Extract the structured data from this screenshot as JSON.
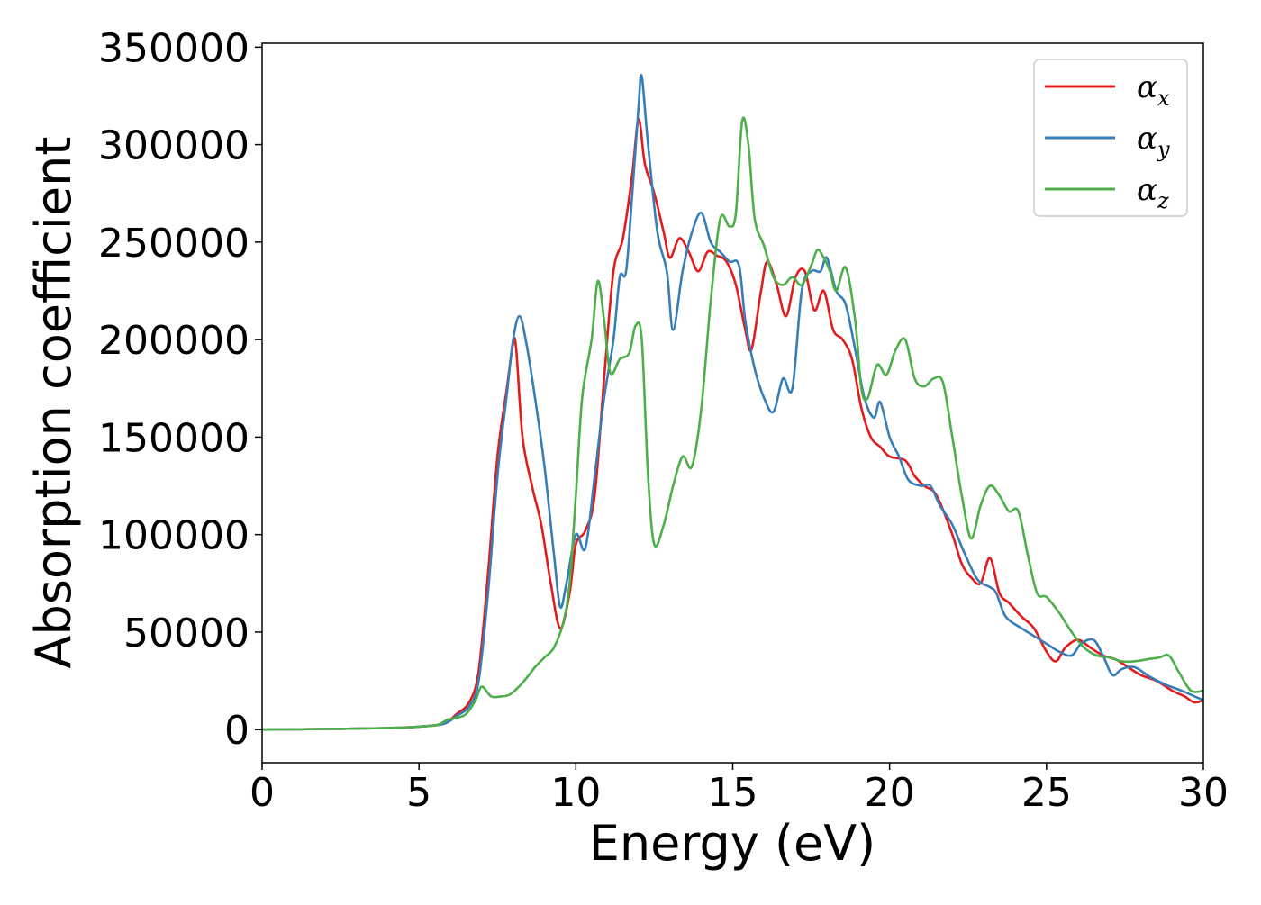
{
  "chart_data": {
    "type": "line",
    "title": "",
    "xlabel": "Energy (eV)",
    "ylabel": "Absorption coefficient",
    "xlim": [
      0,
      30
    ],
    "ylim": [
      -17000,
      352000
    ],
    "xticks": [
      0,
      5,
      10,
      15,
      20,
      25,
      30
    ],
    "xtick_labels": [
      "0",
      "5",
      "10",
      "15",
      "20",
      "25",
      "30"
    ],
    "yticks": [
      0,
      50000,
      100000,
      150000,
      200000,
      250000,
      300000,
      350000
    ],
    "ytick_labels": [
      "0",
      "50000",
      "100000",
      "150000",
      "200000",
      "250000",
      "300000",
      "350000"
    ],
    "grid": false,
    "legend_position": "top-right",
    "series": [
      {
        "name": "αx",
        "legend_base": "α",
        "legend_sub": "x",
        "color": "#e41a1c",
        "points": [
          [
            0,
            0
          ],
          [
            2,
            300
          ],
          [
            4,
            800
          ],
          [
            5,
            1500
          ],
          [
            5.8,
            3000
          ],
          [
            6.2,
            8000
          ],
          [
            6.6,
            14000
          ],
          [
            6.9,
            30000
          ],
          [
            7.2,
            80000
          ],
          [
            7.5,
            140000
          ],
          [
            7.8,
            175000
          ],
          [
            8.0,
            198000
          ],
          [
            8.1,
            195000
          ],
          [
            8.3,
            150000
          ],
          [
            8.6,
            125000
          ],
          [
            8.9,
            105000
          ],
          [
            9.2,
            75000
          ],
          [
            9.5,
            52000
          ],
          [
            9.8,
            70000
          ],
          [
            10.0,
            95000
          ],
          [
            10.3,
            102000
          ],
          [
            10.6,
            120000
          ],
          [
            10.9,
            180000
          ],
          [
            11.2,
            235000
          ],
          [
            11.5,
            252000
          ],
          [
            11.8,
            285000
          ],
          [
            12.0,
            313000
          ],
          [
            12.2,
            290000
          ],
          [
            12.5,
            275000
          ],
          [
            12.8,
            255000
          ],
          [
            13.0,
            242000
          ],
          [
            13.3,
            252000
          ],
          [
            13.6,
            245000
          ],
          [
            13.9,
            235000
          ],
          [
            14.2,
            245000
          ],
          [
            14.5,
            243000
          ],
          [
            14.8,
            240000
          ],
          [
            15.1,
            228000
          ],
          [
            15.4,
            205000
          ],
          [
            15.6,
            195000
          ],
          [
            15.9,
            225000
          ],
          [
            16.1,
            240000
          ],
          [
            16.4,
            228000
          ],
          [
            16.7,
            212000
          ],
          [
            17.0,
            232000
          ],
          [
            17.3,
            235000
          ],
          [
            17.6,
            215000
          ],
          [
            17.9,
            225000
          ],
          [
            18.2,
            205000
          ],
          [
            18.5,
            200000
          ],
          [
            18.8,
            190000
          ],
          [
            19.1,
            165000
          ],
          [
            19.4,
            150000
          ],
          [
            19.7,
            145000
          ],
          [
            20.0,
            140000
          ],
          [
            20.5,
            138000
          ],
          [
            20.8,
            130000
          ],
          [
            21.1,
            125000
          ],
          [
            21.5,
            120000
          ],
          [
            22.0,
            100000
          ],
          [
            22.3,
            85000
          ],
          [
            22.6,
            78000
          ],
          [
            22.9,
            75000
          ],
          [
            23.2,
            88000
          ],
          [
            23.5,
            70000
          ],
          [
            23.8,
            65000
          ],
          [
            24.2,
            58000
          ],
          [
            24.6,
            52000
          ],
          [
            25.0,
            40000
          ],
          [
            25.3,
            35000
          ],
          [
            25.6,
            42000
          ],
          [
            26.0,
            46000
          ],
          [
            26.4,
            42000
          ],
          [
            26.8,
            38000
          ],
          [
            27.2,
            36000
          ],
          [
            27.6,
            32000
          ],
          [
            28.0,
            28000
          ],
          [
            28.5,
            25000
          ],
          [
            29.0,
            20000
          ],
          [
            29.4,
            17000
          ],
          [
            29.7,
            14000
          ],
          [
            30.0,
            15000
          ]
        ]
      },
      {
        "name": "αy",
        "legend_base": "α",
        "legend_sub": "y",
        "color": "#377eb8",
        "points": [
          [
            0,
            0
          ],
          [
            2,
            300
          ],
          [
            4,
            800
          ],
          [
            5,
            1500
          ],
          [
            5.8,
            3000
          ],
          [
            6.2,
            7000
          ],
          [
            6.6,
            12000
          ],
          [
            6.9,
            25000
          ],
          [
            7.2,
            70000
          ],
          [
            7.5,
            130000
          ],
          [
            7.8,
            172000
          ],
          [
            8.0,
            200000
          ],
          [
            8.2,
            212000
          ],
          [
            8.4,
            200000
          ],
          [
            8.7,
            170000
          ],
          [
            9.0,
            135000
          ],
          [
            9.3,
            90000
          ],
          [
            9.5,
            63000
          ],
          [
            9.7,
            75000
          ],
          [
            10.0,
            100000
          ],
          [
            10.3,
            93000
          ],
          [
            10.6,
            130000
          ],
          [
            10.9,
            170000
          ],
          [
            11.2,
            200000
          ],
          [
            11.4,
            232000
          ],
          [
            11.6,
            235000
          ],
          [
            11.8,
            275000
          ],
          [
            12.0,
            320000
          ],
          [
            12.1,
            335000
          ],
          [
            12.3,
            300000
          ],
          [
            12.6,
            255000
          ],
          [
            12.9,
            235000
          ],
          [
            13.1,
            205000
          ],
          [
            13.4,
            235000
          ],
          [
            13.7,
            255000
          ],
          [
            14.0,
            265000
          ],
          [
            14.3,
            250000
          ],
          [
            14.6,
            245000
          ],
          [
            14.9,
            240000
          ],
          [
            15.2,
            238000
          ],
          [
            15.4,
            210000
          ],
          [
            15.7,
            185000
          ],
          [
            16.0,
            170000
          ],
          [
            16.3,
            163000
          ],
          [
            16.6,
            180000
          ],
          [
            16.9,
            175000
          ],
          [
            17.2,
            225000
          ],
          [
            17.5,
            235000
          ],
          [
            17.8,
            235000
          ],
          [
            18.0,
            242000
          ],
          [
            18.3,
            225000
          ],
          [
            18.6,
            218000
          ],
          [
            18.9,
            195000
          ],
          [
            19.2,
            170000
          ],
          [
            19.5,
            160000
          ],
          [
            19.7,
            168000
          ],
          [
            20.0,
            150000
          ],
          [
            20.3,
            140000
          ],
          [
            20.6,
            128000
          ],
          [
            21.0,
            125000
          ],
          [
            21.3,
            125000
          ],
          [
            21.6,
            115000
          ],
          [
            22.0,
            105000
          ],
          [
            22.4,
            90000
          ],
          [
            22.8,
            77000
          ],
          [
            23.2,
            73000
          ],
          [
            23.4,
            70000
          ],
          [
            23.7,
            58000
          ],
          [
            24.2,
            52000
          ],
          [
            24.6,
            48000
          ],
          [
            25.0,
            44000
          ],
          [
            25.4,
            40000
          ],
          [
            25.8,
            38000
          ],
          [
            26.1,
            44000
          ],
          [
            26.5,
            46000
          ],
          [
            26.8,
            38000
          ],
          [
            27.1,
            28000
          ],
          [
            27.4,
            31000
          ],
          [
            27.8,
            32000
          ],
          [
            28.3,
            27000
          ],
          [
            28.8,
            23000
          ],
          [
            29.3,
            20000
          ],
          [
            30.0,
            15000
          ]
        ]
      },
      {
        "name": "αz",
        "legend_base": "α",
        "legend_sub": "z",
        "color": "#4daf4a",
        "points": [
          [
            0,
            0
          ],
          [
            2,
            300
          ],
          [
            4,
            800
          ],
          [
            5,
            1500
          ],
          [
            5.6,
            2500
          ],
          [
            5.9,
            5000
          ],
          [
            6.2,
            6000
          ],
          [
            6.5,
            8000
          ],
          [
            6.8,
            15000
          ],
          [
            7.0,
            22000
          ],
          [
            7.3,
            17000
          ],
          [
            7.6,
            17000
          ],
          [
            7.9,
            18000
          ],
          [
            8.3,
            24000
          ],
          [
            8.7,
            32000
          ],
          [
            9.0,
            37000
          ],
          [
            9.3,
            42000
          ],
          [
            9.6,
            55000
          ],
          [
            9.8,
            75000
          ],
          [
            10.0,
            120000
          ],
          [
            10.2,
            170000
          ],
          [
            10.5,
            200000
          ],
          [
            10.7,
            230000
          ],
          [
            10.9,
            210000
          ],
          [
            11.1,
            183000
          ],
          [
            11.4,
            190000
          ],
          [
            11.7,
            193000
          ],
          [
            11.9,
            207000
          ],
          [
            12.1,
            200000
          ],
          [
            12.3,
            130000
          ],
          [
            12.5,
            95000
          ],
          [
            12.8,
            105000
          ],
          [
            13.1,
            125000
          ],
          [
            13.4,
            140000
          ],
          [
            13.7,
            135000
          ],
          [
            14.0,
            165000
          ],
          [
            14.3,
            220000
          ],
          [
            14.6,
            262000
          ],
          [
            14.9,
            258000
          ],
          [
            15.1,
            265000
          ],
          [
            15.3,
            312000
          ],
          [
            15.5,
            300000
          ],
          [
            15.7,
            262000
          ],
          [
            16.0,
            248000
          ],
          [
            16.3,
            232000
          ],
          [
            16.6,
            228000
          ],
          [
            16.9,
            232000
          ],
          [
            17.2,
            228000
          ],
          [
            17.5,
            238000
          ],
          [
            17.7,
            246000
          ],
          [
            17.9,
            242000
          ],
          [
            18.1,
            235000
          ],
          [
            18.3,
            225000
          ],
          [
            18.6,
            237000
          ],
          [
            18.9,
            210000
          ],
          [
            19.1,
            175000
          ],
          [
            19.3,
            170000
          ],
          [
            19.6,
            187000
          ],
          [
            19.9,
            182000
          ],
          [
            20.2,
            195000
          ],
          [
            20.5,
            200000
          ],
          [
            20.8,
            180000
          ],
          [
            21.1,
            176000
          ],
          [
            21.4,
            180000
          ],
          [
            21.7,
            178000
          ],
          [
            22.0,
            150000
          ],
          [
            22.3,
            120000
          ],
          [
            22.6,
            98000
          ],
          [
            22.9,
            115000
          ],
          [
            23.2,
            125000
          ],
          [
            23.5,
            120000
          ],
          [
            23.8,
            112000
          ],
          [
            24.1,
            112000
          ],
          [
            24.4,
            90000
          ],
          [
            24.7,
            70000
          ],
          [
            25.0,
            68000
          ],
          [
            25.4,
            60000
          ],
          [
            25.8,
            50000
          ],
          [
            26.2,
            42000
          ],
          [
            26.6,
            38000
          ],
          [
            27.0,
            37000
          ],
          [
            27.4,
            35000
          ],
          [
            27.8,
            35000
          ],
          [
            28.2,
            36000
          ],
          [
            28.6,
            37000
          ],
          [
            28.9,
            38000
          ],
          [
            29.2,
            30000
          ],
          [
            29.6,
            20000
          ],
          [
            30.0,
            20000
          ]
        ]
      }
    ]
  }
}
